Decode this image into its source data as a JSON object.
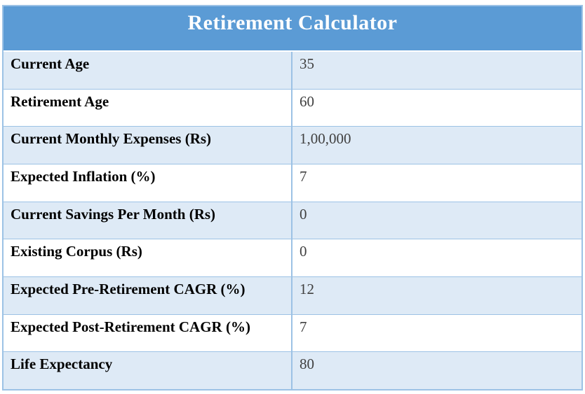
{
  "title": "Retirement Calculator",
  "table": {
    "rows": [
      {
        "label": "Current Age",
        "value": "35"
      },
      {
        "label": "Retirement Age",
        "value": "60"
      },
      {
        "label": "Current Monthly Expenses (Rs)",
        "value": "1,00,000"
      },
      {
        "label": "Expected Inflation (%)",
        "value": "7"
      },
      {
        "label": "Current Savings Per Month (Rs)",
        "value": "0"
      },
      {
        "label": "Existing Corpus (Rs)",
        "value": "0"
      },
      {
        "label": "Expected Pre-Retirement CAGR (%)",
        "value": "12"
      },
      {
        "label": "Expected Post-Retirement CAGR (%)",
        "value": "7"
      },
      {
        "label": "Life Expectancy",
        "value": "80"
      }
    ]
  },
  "colors": {
    "header_bg": "#5B9BD5",
    "banded_row_bg": "#DEEAF6",
    "plain_row_bg": "#FFFFFF",
    "border": "#9CC2E5",
    "title_text": "#FFFFFF",
    "label_text": "#000000",
    "value_text": "#404040"
  }
}
